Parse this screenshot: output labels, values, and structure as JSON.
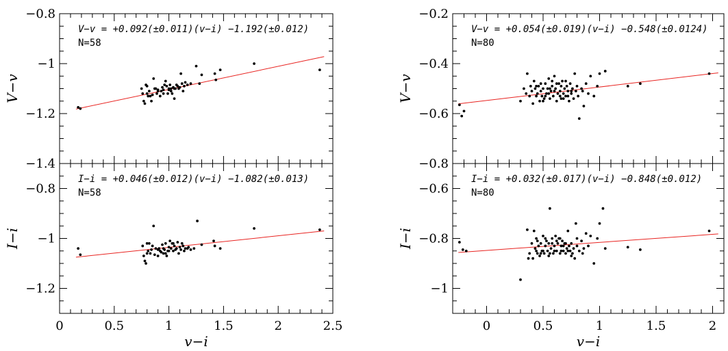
{
  "chart_data": [
    {
      "type": "scatter",
      "panel": "top-left",
      "xlim": [
        0,
        2.5
      ],
      "ylim": [
        -1.4,
        -0.8
      ],
      "xticks": [
        0,
        0.5,
        1,
        1.5,
        2,
        2.5
      ],
      "yticks": [
        -1.4,
        -1.2,
        -1,
        -0.8
      ],
      "ytick_labels": [
        "−1.4",
        "−1.2",
        "−1",
        "−0.8"
      ],
      "ylabel": "V−v",
      "xlabel": "",
      "equation": "V−v = +0.092(±0.011)(v−i) −1.192(±0.012)",
      "n_label": "N=58",
      "fit_line": {
        "x": [
          0.15,
          2.42
        ],
        "y": [
          -1.182,
          -0.972
        ]
      },
      "points": [
        [
          0.17,
          -1.175
        ],
        [
          0.19,
          -1.18
        ],
        [
          0.75,
          -1.1
        ],
        [
          0.76,
          -1.12
        ],
        [
          0.77,
          -1.15
        ],
        [
          0.78,
          -1.16
        ],
        [
          0.79,
          -1.085
        ],
        [
          0.8,
          -1.09
        ],
        [
          0.81,
          -1.13
        ],
        [
          0.82,
          -1.11
        ],
        [
          0.83,
          -1.13
        ],
        [
          0.84,
          -1.15
        ],
        [
          0.85,
          -1.125
        ],
        [
          0.86,
          -1.06
        ],
        [
          0.88,
          -1.1
        ],
        [
          0.89,
          -1.12
        ],
        [
          0.9,
          -1.105
        ],
        [
          0.92,
          -1.13
        ],
        [
          0.93,
          -1.11
        ],
        [
          0.95,
          -1.105
        ],
        [
          0.96,
          -1.085
        ],
        [
          0.97,
          -1.07
        ],
        [
          0.98,
          -1.09
        ],
        [
          0.99,
          -1.12
        ],
        [
          1.0,
          -1.1
        ],
        [
          1.01,
          -1.085
        ],
        [
          1.02,
          -1.11
        ],
        [
          1.03,
          -1.12
        ],
        [
          1.04,
          -1.095
        ],
        [
          1.05,
          -1.14
        ],
        [
          1.06,
          -1.1
        ],
        [
          1.07,
          -1.085
        ],
        [
          1.08,
          -1.09
        ],
        [
          1.1,
          -1.095
        ],
        [
          1.11,
          -1.04
        ],
        [
          1.12,
          -1.08
        ],
        [
          1.14,
          -1.09
        ],
        [
          1.15,
          -1.075
        ],
        [
          1.17,
          -1.085
        ],
        [
          1.2,
          -1.08
        ],
        [
          1.25,
          -1.01
        ],
        [
          1.28,
          -1.08
        ],
        [
          1.3,
          -1.045
        ],
        [
          1.42,
          -1.04
        ],
        [
          1.43,
          -1.065
        ],
        [
          1.47,
          -1.025
        ],
        [
          1.78,
          -1.0
        ],
        [
          2.38,
          -1.025
        ],
        [
          0.9,
          -1.11
        ],
        [
          0.95,
          -1.12
        ],
        [
          1.0,
          -1.105
        ],
        [
          1.05,
          -1.1
        ],
        [
          0.87,
          -1.1
        ],
        [
          1.09,
          -1.1
        ],
        [
          0.8,
          -1.12
        ],
        [
          1.13,
          -1.11
        ],
        [
          0.94,
          -1.095
        ],
        [
          1.02,
          -1.1
        ]
      ]
    },
    {
      "type": "scatter",
      "panel": "bottom-left",
      "xlim": [
        0,
        2.5
      ],
      "ylim": [
        -1.3,
        -0.7
      ],
      "xticks": [
        0,
        0.5,
        1,
        1.5,
        2,
        2.5
      ],
      "xtick_labels": [
        "0",
        "0.5",
        "1",
        "1.5",
        "2",
        "2.5"
      ],
      "yticks": [
        -1.2,
        -1,
        -0.8
      ],
      "ytick_labels": [
        "−1.2",
        "−1",
        "−0.8"
      ],
      "ylabel": "I−i",
      "xlabel": "v−i",
      "equation": "I−i = +0.046(±0.012)(v−i) −1.082(±0.013)",
      "n_label": "N=58",
      "fit_line": {
        "x": [
          0.15,
          2.42
        ],
        "y": [
          -1.075,
          -0.97
        ]
      },
      "points": [
        [
          0.17,
          -1.04
        ],
        [
          0.19,
          -1.065
        ],
        [
          0.76,
          -1.03
        ],
        [
          0.77,
          -1.07
        ],
        [
          0.78,
          -1.09
        ],
        [
          0.79,
          -1.1
        ],
        [
          0.8,
          -1.02
        ],
        [
          0.81,
          -1.05
        ],
        [
          0.82,
          -1.02
        ],
        [
          0.83,
          -1.06
        ],
        [
          0.84,
          -1.045
        ],
        [
          0.86,
          -0.95
        ],
        [
          0.87,
          -1.065
        ],
        [
          0.88,
          -1.04
        ],
        [
          0.9,
          -1.07
        ],
        [
          0.91,
          -1.04
        ],
        [
          0.92,
          -1.05
        ],
        [
          0.94,
          -1.025
        ],
        [
          0.95,
          -1.06
        ],
        [
          0.96,
          -1.045
        ],
        [
          0.97,
          -1.02
        ],
        [
          0.98,
          -1.07
        ],
        [
          0.99,
          -1.05
        ],
        [
          1.0,
          -1.035
        ],
        [
          1.01,
          -1.01
        ],
        [
          1.02,
          -1.04
        ],
        [
          1.03,
          -1.02
        ],
        [
          1.04,
          -1.05
        ],
        [
          1.05,
          -1.03
        ],
        [
          1.06,
          -1.045
        ],
        [
          1.07,
          -1.04
        ],
        [
          1.08,
          -1.015
        ],
        [
          1.1,
          -1.035
        ],
        [
          1.11,
          -1.045
        ],
        [
          1.12,
          -1.02
        ],
        [
          1.14,
          -1.05
        ],
        [
          1.15,
          -1.04
        ],
        [
          1.17,
          -1.04
        ],
        [
          1.2,
          -1.045
        ],
        [
          1.23,
          -1.04
        ],
        [
          1.26,
          -0.93
        ],
        [
          1.3,
          -1.025
        ],
        [
          1.41,
          -1.01
        ],
        [
          1.42,
          -1.03
        ],
        [
          1.47,
          -1.04
        ],
        [
          1.78,
          -0.96
        ],
        [
          2.38,
          -0.965
        ],
        [
          0.9,
          -1.045
        ],
        [
          0.95,
          -1.04
        ],
        [
          1.0,
          -1.05
        ],
        [
          0.85,
          -1.03
        ],
        [
          1.09,
          -1.06
        ],
        [
          0.8,
          -1.06
        ],
        [
          1.13,
          -1.03
        ],
        [
          0.93,
          -1.055
        ],
        [
          1.04,
          -1.02
        ],
        [
          0.97,
          -1.06
        ],
        [
          1.18,
          -1.035
        ]
      ]
    },
    {
      "type": "scatter",
      "panel": "top-right",
      "xlim": [
        -0.3,
        2.1
      ],
      "ylim": [
        -0.8,
        -0.2
      ],
      "xticks": [
        0,
        0.5,
        1,
        1.5,
        2
      ],
      "yticks": [
        -0.8,
        -0.6,
        -0.4,
        -0.2
      ],
      "ytick_labels": [
        "−0.8",
        "−0.6",
        "−0.4",
        "−0.2"
      ],
      "ylabel": "V−v",
      "xlabel": "",
      "equation": "V−v = +0.054(±0.019)(v−i) −0.548(±0.0124)",
      "n_label": "N=80",
      "fit_line": {
        "x": [
          -0.25,
          2.05
        ],
        "y": [
          -0.561,
          -0.437
        ]
      },
      "points": [
        [
          -0.24,
          -0.565
        ],
        [
          -0.22,
          -0.61
        ],
        [
          -0.2,
          -0.59
        ],
        [
          0.3,
          -0.55
        ],
        [
          0.33,
          -0.5
        ],
        [
          0.36,
          -0.44
        ],
        [
          0.38,
          -0.53
        ],
        [
          0.4,
          -0.51
        ],
        [
          0.41,
          -0.56
        ],
        [
          0.42,
          -0.47
        ],
        [
          0.43,
          -0.5
        ],
        [
          0.44,
          -0.53
        ],
        [
          0.45,
          -0.52
        ],
        [
          0.46,
          -0.49
        ],
        [
          0.47,
          -0.55
        ],
        [
          0.48,
          -0.51
        ],
        [
          0.49,
          -0.53
        ],
        [
          0.5,
          -0.5
        ],
        [
          0.51,
          -0.54
        ],
        [
          0.52,
          -0.48
        ],
        [
          0.53,
          -0.52
        ],
        [
          0.54,
          -0.5
        ],
        [
          0.55,
          -0.46
        ],
        [
          0.56,
          -0.54
        ],
        [
          0.57,
          -0.51
        ],
        [
          0.58,
          -0.49
        ],
        [
          0.59,
          -0.53
        ],
        [
          0.6,
          -0.45
        ],
        [
          0.61,
          -0.5
        ],
        [
          0.62,
          -0.55
        ],
        [
          0.63,
          -0.52
        ],
        [
          0.64,
          -0.48
        ],
        [
          0.65,
          -0.51
        ],
        [
          0.66,
          -0.54
        ],
        [
          0.67,
          -0.47
        ],
        [
          0.68,
          -0.52
        ],
        [
          0.69,
          -0.5
        ],
        [
          0.7,
          -0.53
        ],
        [
          0.71,
          -0.49
        ],
        [
          0.72,
          -0.51
        ],
        [
          0.73,
          -0.55
        ],
        [
          0.74,
          -0.48
        ],
        [
          0.75,
          -0.52
        ],
        [
          0.76,
          -0.5
        ],
        [
          0.77,
          -0.54
        ],
        [
          0.78,
          -0.44
        ],
        [
          0.79,
          -0.51
        ],
        [
          0.8,
          -0.49
        ],
        [
          0.81,
          -0.53
        ],
        [
          0.82,
          -0.62
        ],
        [
          0.84,
          -0.5
        ],
        [
          0.86,
          -0.57
        ],
        [
          0.88,
          -0.48
        ],
        [
          0.9,
          -0.52
        ],
        [
          0.92,
          -0.45
        ],
        [
          0.95,
          -0.53
        ],
        [
          0.98,
          -0.49
        ],
        [
          1.0,
          -0.44
        ],
        [
          1.05,
          -0.43
        ],
        [
          1.25,
          -0.49
        ],
        [
          1.36,
          -0.48
        ],
        [
          1.97,
          -0.44
        ],
        [
          0.35,
          -0.52
        ],
        [
          0.39,
          -0.49
        ],
        [
          0.5,
          -0.55
        ],
        [
          0.55,
          -0.52
        ],
        [
          0.6,
          -0.51
        ],
        [
          0.65,
          -0.53
        ],
        [
          0.7,
          -0.47
        ],
        [
          0.75,
          -0.51
        ],
        [
          0.68,
          -0.54
        ],
        [
          0.58,
          -0.47
        ],
        [
          0.62,
          -0.48
        ],
        [
          0.72,
          -0.53
        ],
        [
          0.48,
          -0.48
        ],
        [
          0.52,
          -0.53
        ],
        [
          0.66,
          -0.49
        ],
        [
          0.56,
          -0.5
        ],
        [
          0.44,
          -0.49
        ],
        [
          0.85,
          -0.51
        ]
      ]
    },
    {
      "type": "scatter",
      "panel": "bottom-right",
      "xlim": [
        -0.3,
        2.1
      ],
      "ylim": [
        -1.1,
        -0.5
      ],
      "xticks": [
        0,
        0.5,
        1,
        1.5,
        2
      ],
      "xtick_labels": [
        "0",
        "0.5",
        "1",
        "1.5",
        "2"
      ],
      "yticks": [
        -1,
        -0.8,
        -0.6
      ],
      "ytick_labels": [
        "−1",
        "−0.8",
        "−0.6"
      ],
      "ylabel": "I−i",
      "xlabel": "v−i",
      "equation": "I−i = +0.032(±0.017)(v−i) −0.848(±0.012)",
      "n_label": "N=80",
      "fit_line": {
        "x": [
          -0.25,
          2.05
        ],
        "y": [
          -0.856,
          -0.782
        ]
      },
      "points": [
        [
          -0.24,
          -0.815
        ],
        [
          -0.21,
          -0.845
        ],
        [
          -0.18,
          -0.85
        ],
        [
          0.3,
          -0.965
        ],
        [
          0.36,
          -0.765
        ],
        [
          0.38,
          -0.86
        ],
        [
          0.4,
          -0.82
        ],
        [
          0.41,
          -0.88
        ],
        [
          0.42,
          -0.77
        ],
        [
          0.43,
          -0.84
        ],
        [
          0.44,
          -0.8
        ],
        [
          0.45,
          -0.86
        ],
        [
          0.46,
          -0.83
        ],
        [
          0.47,
          -0.87
        ],
        [
          0.48,
          -0.82
        ],
        [
          0.49,
          -0.85
        ],
        [
          0.5,
          -0.79
        ],
        [
          0.51,
          -0.86
        ],
        [
          0.52,
          -0.83
        ],
        [
          0.53,
          -0.81
        ],
        [
          0.54,
          -0.85
        ],
        [
          0.55,
          -0.82
        ],
        [
          0.56,
          -0.68
        ],
        [
          0.57,
          -0.84
        ],
        [
          0.58,
          -0.8
        ],
        [
          0.59,
          -0.86
        ],
        [
          0.6,
          -0.83
        ],
        [
          0.61,
          -0.79
        ],
        [
          0.62,
          -0.85
        ],
        [
          0.63,
          -0.82
        ],
        [
          0.64,
          -0.8
        ],
        [
          0.65,
          -0.86
        ],
        [
          0.66,
          -0.83
        ],
        [
          0.67,
          -0.81
        ],
        [
          0.68,
          -0.85
        ],
        [
          0.69,
          -0.82
        ],
        [
          0.7,
          -0.86
        ],
        [
          0.71,
          -0.84
        ],
        [
          0.72,
          -0.77
        ],
        [
          0.73,
          -0.83
        ],
        [
          0.74,
          -0.85
        ],
        [
          0.75,
          -0.82
        ],
        [
          0.76,
          -0.86
        ],
        [
          0.77,
          -0.84
        ],
        [
          0.78,
          -0.88
        ],
        [
          0.79,
          -0.74
        ],
        [
          0.8,
          -0.83
        ],
        [
          0.82,
          -0.85
        ],
        [
          0.84,
          -0.81
        ],
        [
          0.86,
          -0.84
        ],
        [
          0.88,
          -0.78
        ],
        [
          0.9,
          -0.83
        ],
        [
          0.92,
          -0.79
        ],
        [
          0.95,
          -0.9
        ],
        [
          0.98,
          -0.8
        ],
        [
          1.0,
          -0.74
        ],
        [
          1.03,
          -0.68
        ],
        [
          1.05,
          -0.84
        ],
        [
          1.25,
          -0.835
        ],
        [
          1.36,
          -0.845
        ],
        [
          1.97,
          -0.77
        ],
        [
          0.37,
          -0.88
        ],
        [
          0.45,
          -0.81
        ],
        [
          0.5,
          -0.85
        ],
        [
          0.55,
          -0.87
        ],
        [
          0.6,
          -0.85
        ],
        [
          0.65,
          -0.8
        ],
        [
          0.7,
          -0.82
        ],
        [
          0.75,
          -0.87
        ],
        [
          0.58,
          -0.82
        ],
        [
          0.62,
          -0.81
        ],
        [
          0.68,
          -0.83
        ],
        [
          0.72,
          -0.85
        ],
        [
          0.48,
          -0.86
        ],
        [
          0.52,
          -0.8
        ],
        [
          0.66,
          -0.85
        ],
        [
          0.56,
          -0.86
        ],
        [
          0.44,
          -0.85
        ],
        [
          0.85,
          -0.86
        ],
        [
          0.8,
          -0.8
        ]
      ]
    }
  ]
}
